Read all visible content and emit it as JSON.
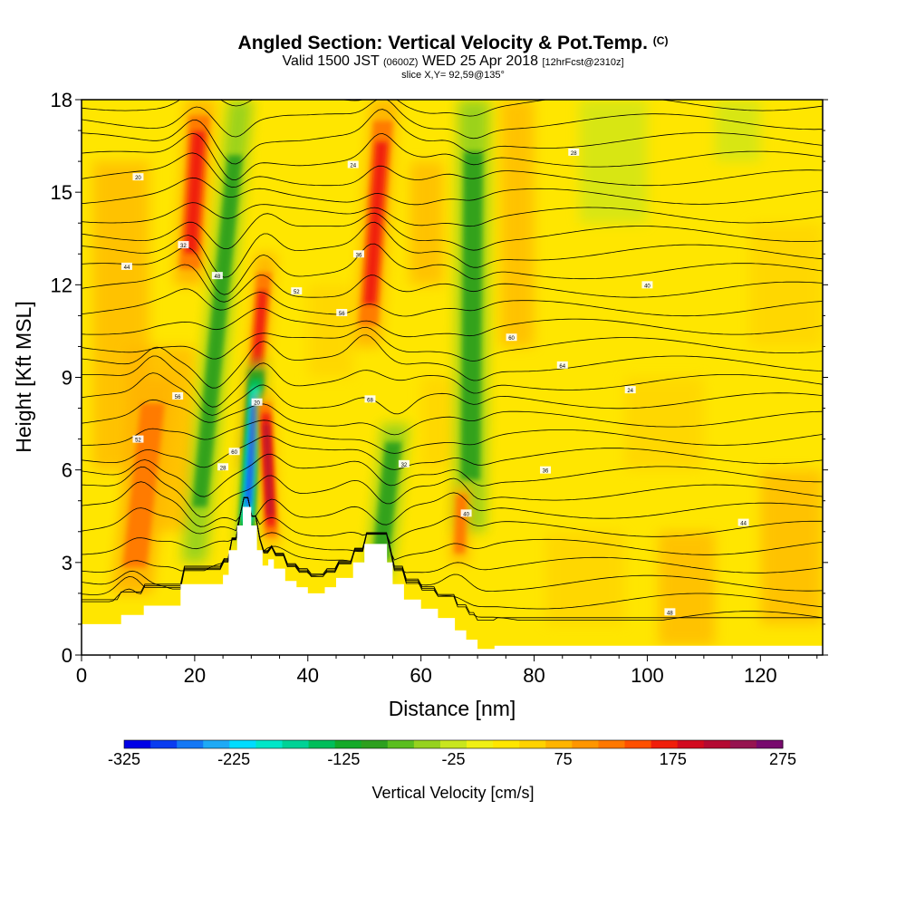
{
  "header": {
    "title": "Angled Section: Vertical Velocity & Pot.Temp.",
    "title_suffix": "(C)",
    "valid_prefix": "Valid 1500 JST",
    "valid_utc": "(0600Z)",
    "valid_date": "WED 25 Apr 2018",
    "forecast_info": "[12hrFcst@2310z]",
    "slice_info": "slice X,Y= 92,59@135°"
  },
  "chart_data": {
    "type": "heatmap",
    "title": "Angled Section: Vertical Velocity & Pot.Temp.",
    "xlabel": "Distance [nm]",
    "ylabel": "Height [Kft MSL]",
    "xlim": [
      0,
      131
    ],
    "ylim": [
      0,
      18
    ],
    "x_ticks": [
      0,
      20,
      40,
      60,
      80,
      100,
      120
    ],
    "y_ticks": [
      0,
      3,
      6,
      9,
      12,
      15,
      18
    ],
    "colorbar": {
      "label": "Vertical Velocity [cm/s]",
      "min": -325,
      "max": 275,
      "step": 25,
      "tick_labels": [
        "-325",
        "-225",
        "-125",
        "-25",
        "75",
        "175",
        "275"
      ],
      "colors": [
        "#0000e6",
        "#0a3cf0",
        "#1478f5",
        "#1eaaf5",
        "#00dcff",
        "#00e6c8",
        "#00d296",
        "#00be5a",
        "#14aa28",
        "#2da01e",
        "#5abe1e",
        "#96d21e",
        "#c8e61e",
        "#f0f014",
        "#ffe600",
        "#ffd200",
        "#ffb400",
        "#ff9600",
        "#ff7800",
        "#ff5000",
        "#f01e0a",
        "#d20a1e",
        "#b40a32",
        "#961450",
        "#780a6e"
      ]
    },
    "velocity_features": [
      {
        "kind": "updraft",
        "x": 11,
        "height_range": [
          2,
          9
        ],
        "peak_cm_s": 150
      },
      {
        "kind": "updraft",
        "x": 20,
        "height_range": [
          12,
          18
        ],
        "peak_cm_s": 175
      },
      {
        "kind": "downdraft",
        "x": 24,
        "height_range": [
          3,
          18
        ],
        "peak_cm_s": -125
      },
      {
        "kind": "updraft",
        "x": 31,
        "height_range": [
          6,
          13
        ],
        "peak_cm_s": 200
      },
      {
        "kind": "downdraft",
        "x": 30,
        "height_range": [
          3.5,
          9.5
        ],
        "peak_cm_s": -325
      },
      {
        "kind": "updraft",
        "x": 33,
        "height_range": [
          3.5,
          8.5
        ],
        "peak_cm_s": 250
      },
      {
        "kind": "updraft",
        "x": 52,
        "height_range": [
          10,
          18
        ],
        "peak_cm_s": 175
      },
      {
        "kind": "downdraft",
        "x": 54,
        "height_range": [
          2.5,
          7.5
        ],
        "peak_cm_s": -125
      },
      {
        "kind": "downdraft",
        "x": 69,
        "height_range": [
          4,
          18
        ],
        "peak_cm_s": -125
      },
      {
        "kind": "updraft",
        "x": 67,
        "height_range": [
          3,
          5.5
        ],
        "peak_cm_s": 150
      }
    ],
    "terrain_kft": [
      [
        0,
        1.0
      ],
      [
        7,
        1.0
      ],
      [
        7,
        1.3
      ],
      [
        11,
        1.3
      ],
      [
        11,
        1.6
      ],
      [
        17.5,
        1.6
      ],
      [
        17.5,
        2.3
      ],
      [
        25,
        2.3
      ],
      [
        25,
        2.6
      ],
      [
        26,
        2.6
      ],
      [
        26,
        3.4
      ],
      [
        27.5,
        3.4
      ],
      [
        27.5,
        4.2
      ],
      [
        28.5,
        4.2
      ],
      [
        28.5,
        4.8
      ],
      [
        30,
        4.8
      ],
      [
        30,
        4.2
      ],
      [
        31,
        4.2
      ],
      [
        31,
        3.4
      ],
      [
        32,
        3.4
      ],
      [
        32,
        2.9
      ],
      [
        33,
        2.9
      ],
      [
        33,
        3.1
      ],
      [
        34,
        3.1
      ],
      [
        34,
        2.8
      ],
      [
        36,
        2.8
      ],
      [
        36,
        2.4
      ],
      [
        38,
        2.4
      ],
      [
        38,
        2.2
      ],
      [
        40,
        2.2
      ],
      [
        40,
        2.0
      ],
      [
        43,
        2.0
      ],
      [
        43,
        2.2
      ],
      [
        45,
        2.2
      ],
      [
        45,
        2.5
      ],
      [
        48,
        2.5
      ],
      [
        48,
        3.0
      ],
      [
        50,
        3.0
      ],
      [
        50,
        3.6
      ],
      [
        54,
        3.6
      ],
      [
        54,
        3.0
      ],
      [
        55,
        3.0
      ],
      [
        55,
        2.3
      ],
      [
        57,
        2.3
      ],
      [
        57,
        1.8
      ],
      [
        60,
        1.8
      ],
      [
        60,
        1.5
      ],
      [
        63,
        1.5
      ],
      [
        63,
        1.2
      ],
      [
        66,
        1.2
      ],
      [
        66,
        0.8
      ],
      [
        68,
        0.8
      ],
      [
        68,
        0.5
      ],
      [
        70,
        0.5
      ],
      [
        70,
        0.2
      ],
      [
        73,
        0.2
      ],
      [
        73,
        0.3
      ],
      [
        131,
        0.3
      ]
    ],
    "isentrope_labels": [
      "20",
      "24",
      "28",
      "32",
      "36",
      "40",
      "44",
      "48",
      "52",
      "56",
      "60",
      "64",
      "68"
    ]
  }
}
